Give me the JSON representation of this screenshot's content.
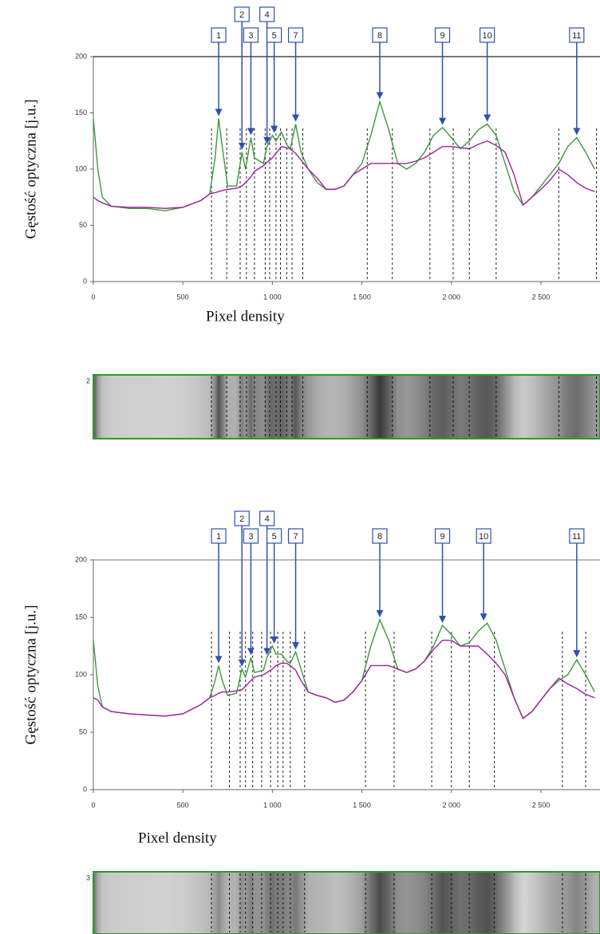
{
  "chart_data": [
    {
      "type": "line",
      "y_label": "Gęstość optyczna [j.u.]",
      "x_label": "Pixel density",
      "gel_lane": "2",
      "xlim": [
        0,
        2830
      ],
      "ylim": [
        0,
        200
      ],
      "xticks": [
        0,
        500,
        {
          "value": 1000,
          "label": "1 000"
        },
        {
          "value": 1500,
          "label": "1 500"
        },
        {
          "value": 2000,
          "label": "2 000"
        },
        {
          "value": 2500,
          "label": "2 500"
        }
      ],
      "yticks": [
        0,
        50,
        100,
        150,
        200
      ],
      "x": [
        0,
        25,
        50,
        100,
        200,
        300,
        400,
        500,
        600,
        650,
        680,
        700,
        720,
        750,
        800,
        830,
        850,
        880,
        900,
        950,
        970,
        1000,
        1020,
        1050,
        1080,
        1100,
        1130,
        1160,
        1200,
        1250,
        1300,
        1350,
        1400,
        1450,
        1500,
        1550,
        1600,
        1650,
        1700,
        1750,
        1800,
        1850,
        1900,
        1950,
        2000,
        2050,
        2100,
        2150,
        2200,
        2250,
        2300,
        2350,
        2400,
        2450,
        2500,
        2550,
        2600,
        2650,
        2700,
        2750,
        2800
      ],
      "series": [
        {
          "color": "#3a9a3a",
          "values": [
            145,
            100,
            75,
            67,
            65,
            65,
            63,
            66,
            72,
            78,
            110,
            145,
            120,
            85,
            85,
            115,
            100,
            128,
            110,
            105,
            120,
            130,
            125,
            133,
            122,
            118,
            140,
            115,
            100,
            88,
            82,
            82,
            85,
            95,
            105,
            130,
            160,
            135,
            105,
            100,
            105,
            115,
            130,
            137,
            128,
            118,
            125,
            135,
            140,
            130,
            105,
            80,
            68,
            75,
            85,
            95,
            105,
            120,
            128,
            115,
            100
          ]
        },
        {
          "color": "#a020a0",
          "values": [
            75,
            72,
            70,
            67,
            66,
            66,
            65,
            66,
            72,
            78,
            79,
            80,
            81,
            82,
            83,
            85,
            88,
            93,
            98,
            103,
            106,
            110,
            114,
            120,
            119,
            118,
            114,
            108,
            100,
            92,
            82,
            82,
            85,
            95,
            100,
            105,
            105,
            105,
            105,
            105,
            107,
            110,
            115,
            120,
            120,
            119,
            118,
            122,
            125,
            121,
            115,
            95,
            68,
            75,
            82,
            90,
            100,
            95,
            88,
            83,
            80
          ]
        }
      ],
      "markers": [
        660,
        745,
        820,
        855,
        900,
        960,
        985,
        1020,
        1045,
        1080,
        1110,
        1170,
        1530,
        1670,
        1880,
        2010,
        2100,
        2250,
        2600,
        2810
      ],
      "peaks": [
        {
          "label": "1",
          "x": 700,
          "y": 145
        },
        {
          "label": "2",
          "x": 830,
          "y": 115
        },
        {
          "label": "3",
          "x": 880,
          "y": 128
        },
        {
          "label": "4",
          "x": 970,
          "y": 120
        },
        {
          "label": "5",
          "x": 1010,
          "y": 130
        },
        {
          "label": "7",
          "x": 1130,
          "y": 140
        },
        {
          "label": "8",
          "x": 1600,
          "y": 160
        },
        {
          "label": "9",
          "x": 1950,
          "y": 137
        },
        {
          "label": "10",
          "x": 2200,
          "y": 140
        },
        {
          "label": "11",
          "x": 2700,
          "y": 128
        }
      ]
    },
    {
      "type": "line",
      "y_label": "Gęstość optyczna [j.u.]",
      "x_label": "Pixel density",
      "gel_lane": "3",
      "xlim": [
        0,
        2830
      ],
      "ylim": [
        0,
        200
      ],
      "xticks": [
        0,
        500,
        {
          "value": 1000,
          "label": "1 000"
        },
        {
          "value": 1500,
          "label": "1 500"
        },
        {
          "value": 2000,
          "label": "2 000"
        },
        {
          "value": 2500,
          "label": "2 500"
        }
      ],
      "yticks": [
        0,
        50,
        100,
        150,
        200
      ],
      "x": [
        0,
        25,
        50,
        100,
        200,
        300,
        400,
        500,
        600,
        650,
        680,
        700,
        720,
        750,
        800,
        830,
        850,
        880,
        900,
        950,
        970,
        1000,
        1020,
        1050,
        1080,
        1100,
        1130,
        1160,
        1200,
        1250,
        1300,
        1350,
        1400,
        1450,
        1500,
        1550,
        1600,
        1650,
        1700,
        1750,
        1800,
        1850,
        1900,
        1950,
        2000,
        2050,
        2100,
        2150,
        2200,
        2250,
        2300,
        2350,
        2400,
        2450,
        2500,
        2550,
        2600,
        2650,
        2700,
        2750,
        2800
      ],
      "series": [
        {
          "color": "#3a9a3a",
          "values": [
            130,
            90,
            72,
            68,
            66,
            65,
            64,
            66,
            74,
            80,
            95,
            108,
            95,
            82,
            84,
            105,
            98,
            115,
            102,
            104,
            115,
            125,
            118,
            118,
            112,
            110,
            120,
            105,
            85,
            82,
            80,
            76,
            78,
            85,
            95,
            125,
            148,
            130,
            105,
            102,
            105,
            112,
            125,
            143,
            135,
            125,
            128,
            138,
            145,
            130,
            105,
            80,
            62,
            68,
            78,
            88,
            95,
            100,
            113,
            100,
            85
          ]
        },
        {
          "color": "#a020a0",
          "values": [
            80,
            78,
            72,
            68,
            66,
            65,
            64,
            66,
            74,
            80,
            82,
            84,
            85,
            85,
            86,
            87,
            90,
            95,
            98,
            100,
            102,
            105,
            108,
            110,
            110,
            108,
            104,
            95,
            85,
            82,
            80,
            76,
            78,
            85,
            95,
            108,
            108,
            108,
            105,
            102,
            105,
            112,
            122,
            130,
            130,
            125,
            125,
            125,
            118,
            110,
            100,
            80,
            62,
            68,
            78,
            88,
            97,
            92,
            88,
            83,
            80
          ]
        }
      ],
      "markers": [
        660,
        760,
        820,
        850,
        890,
        940,
        990,
        1030,
        1060,
        1100,
        1180,
        1520,
        1680,
        1890,
        2000,
        2100,
        2240,
        2620,
        2750
      ],
      "peaks": [
        {
          "label": "1",
          "x": 700,
          "y": 108
        },
        {
          "label": "2",
          "x": 830,
          "y": 105
        },
        {
          "label": "3",
          "x": 880,
          "y": 115
        },
        {
          "label": "4",
          "x": 970,
          "y": 115
        },
        {
          "label": "5",
          "x": 1010,
          "y": 125
        },
        {
          "label": "7",
          "x": 1130,
          "y": 120
        },
        {
          "label": "8",
          "x": 1600,
          "y": 148
        },
        {
          "label": "9",
          "x": 1950,
          "y": 143
        },
        {
          "label": "10",
          "x": 2180,
          "y": 145
        },
        {
          "label": "11",
          "x": 2700,
          "y": 113
        }
      ]
    }
  ]
}
